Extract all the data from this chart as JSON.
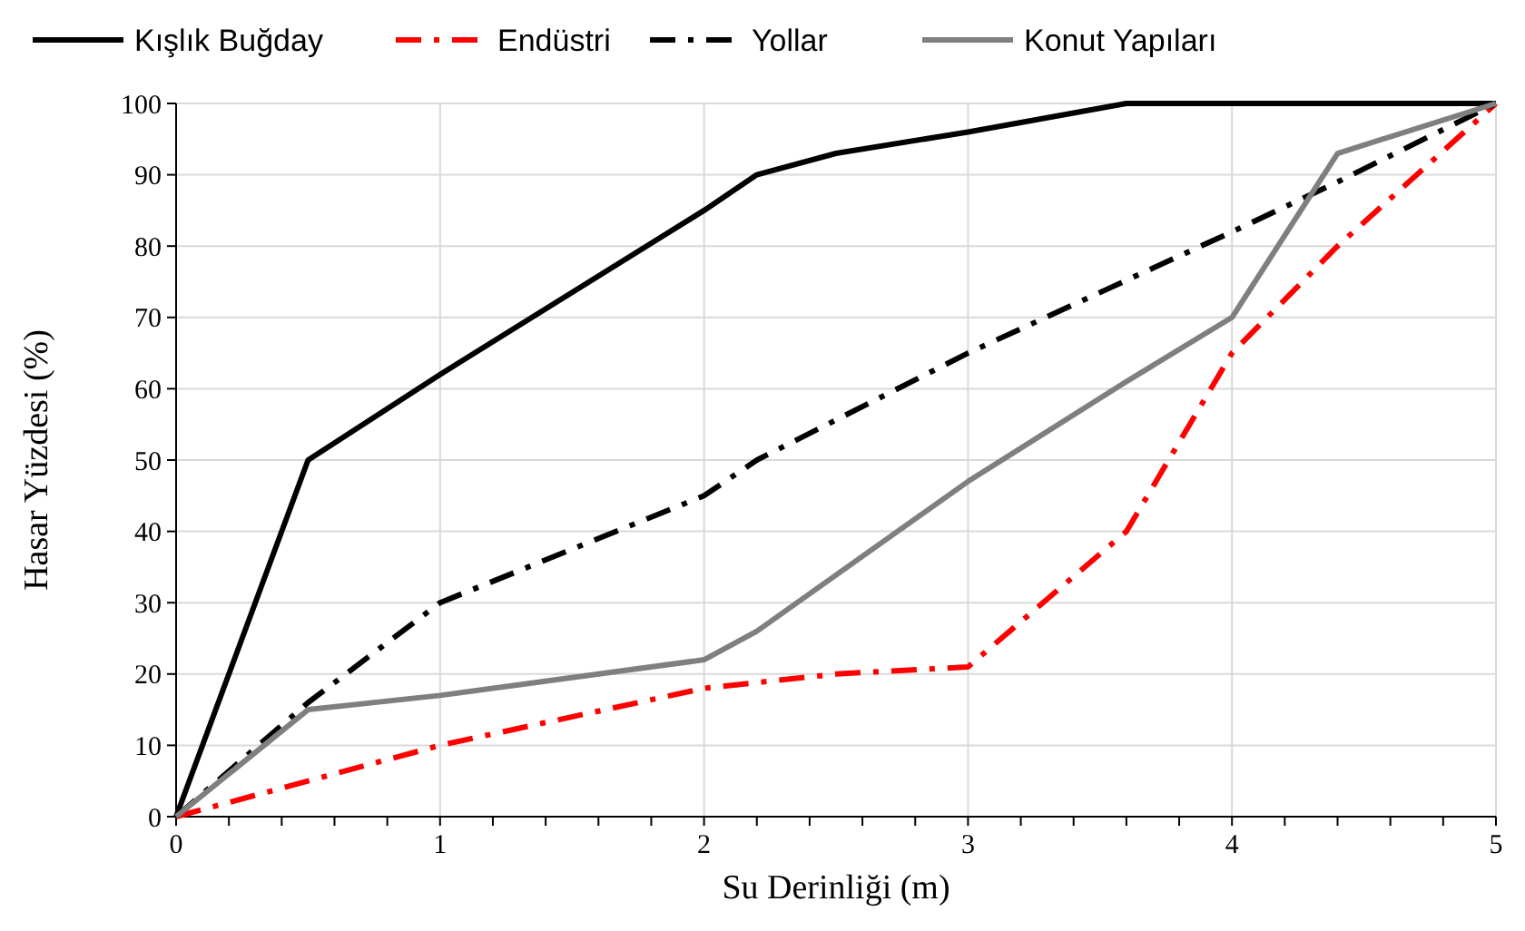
{
  "chart_data": {
    "type": "line",
    "xlabel": "Su Derinliği (m)",
    "ylabel": "Hasar Yüzdesi (%)",
    "xlim": [
      0,
      5
    ],
    "ylim": [
      0,
      100
    ],
    "xticks": [
      0,
      1,
      2,
      3,
      4,
      5
    ],
    "yticks": [
      0,
      10,
      20,
      30,
      40,
      50,
      60,
      70,
      80,
      90,
      100
    ],
    "grid": true,
    "legend": "top",
    "series": [
      {
        "name": "Kışlık Buğday",
        "color": "#000000",
        "line_style": "solid",
        "x": [
          0,
          0.5,
          1,
          2,
          2.2,
          2.5,
          3,
          3.6,
          5
        ],
        "values": [
          0,
          50,
          62,
          85,
          90,
          93,
          96,
          100,
          100
        ]
      },
      {
        "name": "Endüstri",
        "color": "#ff0000",
        "line_style": "dashdot",
        "x": [
          0,
          0.5,
          1,
          2,
          2.5,
          3,
          3.6,
          4,
          4.4,
          5
        ],
        "values": [
          0,
          5,
          10,
          18,
          20,
          21,
          40,
          65,
          80,
          100
        ]
      },
      {
        "name": "Yollar",
        "color": "#000000",
        "line_style": "dashdot",
        "x": [
          0,
          0.5,
          1,
          2,
          2.2,
          3,
          4,
          4.4,
          5
        ],
        "values": [
          0,
          16,
          30,
          45,
          50,
          65,
          82,
          89,
          100
        ]
      },
      {
        "name": "Konut Yapıları",
        "color": "#7f7f7f",
        "line_style": "solid",
        "x": [
          0,
          0.5,
          1,
          2,
          2.2,
          3,
          3.6,
          4,
          4.4,
          5
        ],
        "values": [
          0,
          15,
          17,
          22,
          26,
          47,
          61,
          70,
          93,
          100
        ]
      }
    ]
  }
}
